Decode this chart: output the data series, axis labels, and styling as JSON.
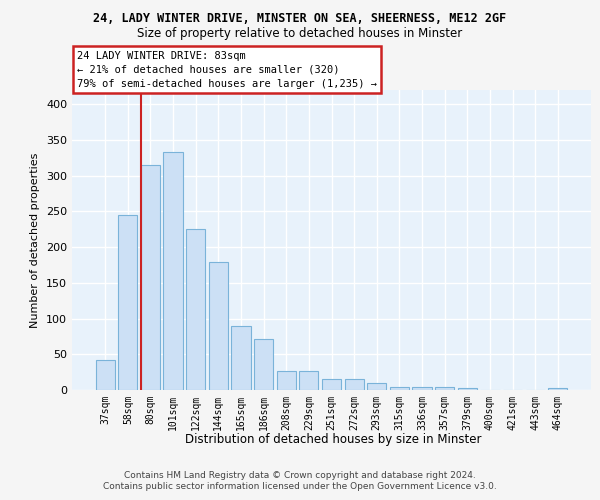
{
  "title1": "24, LADY WINTER DRIVE, MINSTER ON SEA, SHEERNESS, ME12 2GF",
  "title2": "Size of property relative to detached houses in Minster",
  "xlabel": "Distribution of detached houses by size in Minster",
  "ylabel": "Number of detached properties",
  "categories": [
    "37sqm",
    "58sqm",
    "80sqm",
    "101sqm",
    "122sqm",
    "144sqm",
    "165sqm",
    "186sqm",
    "208sqm",
    "229sqm",
    "251sqm",
    "272sqm",
    "293sqm",
    "315sqm",
    "336sqm",
    "357sqm",
    "379sqm",
    "400sqm",
    "421sqm",
    "443sqm",
    "464sqm"
  ],
  "values": [
    42,
    245,
    315,
    333,
    225,
    179,
    90,
    72,
    26,
    26,
    16,
    16,
    10,
    4,
    4,
    4,
    3,
    0,
    0,
    0,
    3
  ],
  "bar_color": "#cce0f5",
  "bar_edge_color": "#7ab3d9",
  "background_color": "#e8f2fb",
  "grid_color": "#ffffff",
  "red_line_color": "#cc2222",
  "annotation_title": "24 LADY WINTER DRIVE: 83sqm",
  "annotation_line1": "← 21% of detached houses are smaller (320)",
  "annotation_line2": "79% of semi-detached houses are larger (1,235) →",
  "annotation_box_facecolor": "#ffffff",
  "annotation_border_color": "#cc2222",
  "ylim": [
    0,
    420
  ],
  "yticks": [
    0,
    50,
    100,
    150,
    200,
    250,
    300,
    350,
    400
  ],
  "fig_bg": "#f5f5f5",
  "footer1": "Contains HM Land Registry data © Crown copyright and database right 2024.",
  "footer2": "Contains public sector information licensed under the Open Government Licence v3.0."
}
